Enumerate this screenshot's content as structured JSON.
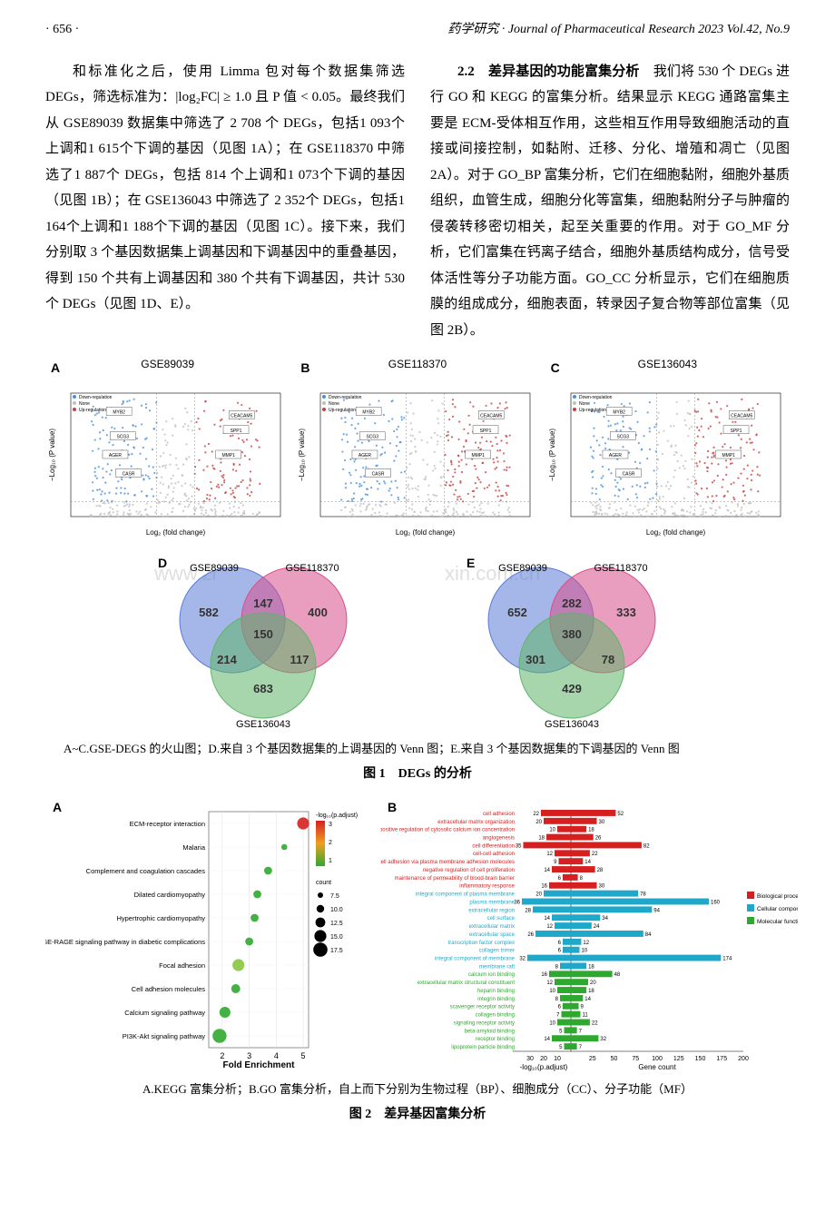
{
  "header": {
    "page": "· 656 ·",
    "journal_cn": "药学研究 · ",
    "journal_en": "Journal of Pharmaceutical Research 2023 Vol.42, No.9"
  },
  "body": {
    "p1": "和标准化之后，使用 Limma 包对每个数据集筛选 DEGs，筛选标准为：|log₂FC| ≥ 1.0 且 P 值 < 0.05。最终我们从 GSE89039 数据集中筛选了 2 708 个 DEGs，包括1 093个上调和1 615个下调的基因（见图 1A）；在 GSE118370 中筛选了1 887个 DEGs，包括 814 个上调和1 073个下调的基因（见图 1B）；在 GSE136043 中筛选了 2 352个 DEGs，包括1 164个上调和1 188个下调的基因（见图 1C）。接下来，我们分别取 3 个基因数据集上调基因和下调基因中的重叠基因，得到 150 个共有上调基因和 380 个共有下调基因，共计 530 个 DEGs（见图 1D、E）。",
    "sec22_head": "2.2　差异基因的功能富集分析",
    "sec22_body": "　我们将 530 个 DEGs 进行 GO 和 KEGG 的富集分析。结果显示 KEGG 通路富集主要是 ECM-受体相互作用，这些相互作用导致细胞活动的直接或间接控制，如黏附、迁移、分化、增殖和凋亡（见图 2A）。对于 GO_BP 富集分析，它们在细胞黏附，细胞外基质组织，血管生成，细胞分化等富集，细胞黏附分子与肿瘤的侵袭转移密切相关，起至关重要的作用。对于 GO_MF 分析，它们富集在钙离子结合，细胞外基质结构成分，信号受体活性等分子功能方面。GO_CC 分析显示，它们在细胞质膜的组成成分，细胞表面，转录因子复合物等部位富集（见图 2B）。"
  },
  "fig1": {
    "volcanoes": [
      {
        "label": "A",
        "title": "GSE89039"
      },
      {
        "label": "B",
        "title": "GSE118370"
      },
      {
        "label": "C",
        "title": "GSE136043"
      }
    ],
    "volcano_style": {
      "down_color": "#4a90d9",
      "up_color": "#c94141",
      "ns_color": "#bfbfbf",
      "xlabel": "Log₂ (fold change)",
      "ylabel": "−Log₁₀ (P value)",
      "legend": [
        "Down-regulation",
        "None",
        "Up-regulation"
      ]
    },
    "venns": [
      {
        "label": "D",
        "sets": [
          "GSE89039",
          "GSE118370",
          "GSE136043"
        ],
        "colors": [
          "#5b7bd5",
          "#d94f8a",
          "#5fb56a"
        ],
        "vals": {
          "a_only": "582",
          "b_only": "400",
          "c_only": "683",
          "ab": "147",
          "ac": "214",
          "bc": "117",
          "abc": "150"
        }
      },
      {
        "label": "E",
        "sets": [
          "GSE89039",
          "GSE118370",
          "GSE136043"
        ],
        "colors": [
          "#5b7bd5",
          "#d94f8a",
          "#5fb56a"
        ],
        "vals": {
          "a_only": "652",
          "b_only": "333",
          "c_only": "429",
          "ab": "282",
          "ac": "301",
          "bc": "78",
          "abc": "380"
        }
      }
    ],
    "watermark_left": "www.zi",
    "watermark_right": "xin.com.cn",
    "caption_sub": "A~C.GSE-DEGS 的火山图；D.来自 3 个基因数据集的上调基因的 Venn 图；E.来自 3 个基因数据集的下调基因的 Venn 图",
    "caption_main": "图 1　DEGs 的分析"
  },
  "fig2": {
    "panelA": {
      "label": "A",
      "ylabels": [
        "ECM-receptor interaction",
        "Malaria",
        "Complement and coagulation cascades",
        "Dilated cardiomyopathy",
        "Hypertrophic cardiomyopathy",
        "AGE-RAGE signaling pathway in diabetic complications",
        "Focal adhesion",
        "Cell adhesion molecules",
        "Calcium signaling pathway",
        "PI3K-Akt signaling pathway"
      ],
      "points": [
        {
          "x": 5.0,
          "size": 12,
          "color": "#d62020"
        },
        {
          "x": 4.3,
          "size": 6,
          "color": "#2fa82f"
        },
        {
          "x": 3.7,
          "size": 8,
          "color": "#2fa82f"
        },
        {
          "x": 3.3,
          "size": 8,
          "color": "#2fa82f"
        },
        {
          "x": 3.2,
          "size": 8,
          "color": "#2fa82f"
        },
        {
          "x": 3.0,
          "size": 8,
          "color": "#2fa82f"
        },
        {
          "x": 2.6,
          "size": 12,
          "color": "#87c540"
        },
        {
          "x": 2.5,
          "size": 9,
          "color": "#2fa82f"
        },
        {
          "x": 2.1,
          "size": 11,
          "color": "#2fa82f"
        },
        {
          "x": 1.9,
          "size": 14,
          "color": "#2fa82f"
        }
      ],
      "xlabel": "Fold Enrichment",
      "xticks": [
        2,
        3,
        4,
        5
      ],
      "color_legend_title": "-log₁₀(p.adjust)",
      "color_legend_vals": [
        "3",
        "2",
        "1"
      ],
      "color_legend_colors": [
        "#d62020",
        "#f0a020",
        "#2fa82f"
      ],
      "size_legend_title": "count",
      "size_legend_vals": [
        "7.5",
        "10.0",
        "12.5",
        "15.0",
        "17.5"
      ]
    },
    "panelB": {
      "label": "B",
      "groups": [
        {
          "color": "#d62020",
          "labels": [
            "cell adhesion",
            "extracellular matrix organization",
            "positive regulation of cytosolic calcium ion concentration",
            "angiogenesis",
            "cell differentiation",
            "cell-cell adhesion",
            "homophilic cell adhesion via plasma membrane adhesion molecules",
            "negative regulation of cell proliferation",
            "maintenance of permeability of blood-brain barrier",
            "inflammatory response"
          ],
          "logp": [
            22,
            20,
            10,
            18,
            35,
            12,
            9,
            14,
            6,
            16
          ],
          "count": [
            52,
            30,
            18,
            26,
            82,
            22,
            14,
            28,
            8,
            30
          ]
        },
        {
          "color": "#1fa8c9",
          "labels": [
            "integral component of plasma membrane",
            "plasma membrane",
            "extracellular region",
            "cell surface",
            "extracellular matrix",
            "extracellular space",
            "transcription factor complex",
            "collagen trimer",
            "integral component of membrane",
            "membrane raft"
          ],
          "logp": [
            20,
            36,
            28,
            14,
            12,
            26,
            6,
            6,
            32,
            8
          ],
          "count": [
            78,
            160,
            94,
            34,
            24,
            84,
            12,
            10,
            174,
            18
          ]
        },
        {
          "color": "#2fa82f",
          "labels": [
            "calcium ion binding",
            "extracellular matrix structural constituent",
            "heparin binding",
            "integrin binding",
            "scavenger receptor activity",
            "collagen binding",
            "signaling receptor activity",
            "beta-amyloid binding",
            "receptor binding",
            "lipoprotein particle binding"
          ],
          "logp": [
            16,
            12,
            10,
            8,
            6,
            7,
            10,
            5,
            14,
            5
          ],
          "count": [
            48,
            20,
            18,
            14,
            9,
            11,
            22,
            7,
            32,
            7
          ]
        }
      ],
      "xlabel_left": "-log₁₀(p.adjust)",
      "xlabel_right": "Gene count",
      "xticks_left": [
        10,
        20,
        30
      ],
      "xticks_right": [
        25,
        50,
        75,
        100,
        125,
        150,
        175,
        200
      ],
      "legend": [
        {
          "c": "#d62020",
          "t": "Biological process"
        },
        {
          "c": "#1fa8c9",
          "t": "Cellular component"
        },
        {
          "c": "#2fa82f",
          "t": "Molecular function"
        }
      ]
    },
    "caption_sub": "A.KEGG 富集分析；B.GO 富集分析，自上而下分别为生物过程（BP）、细胞成分（CC）、分子功能（MF）",
    "caption_main": "图 2　差异基因富集分析"
  }
}
